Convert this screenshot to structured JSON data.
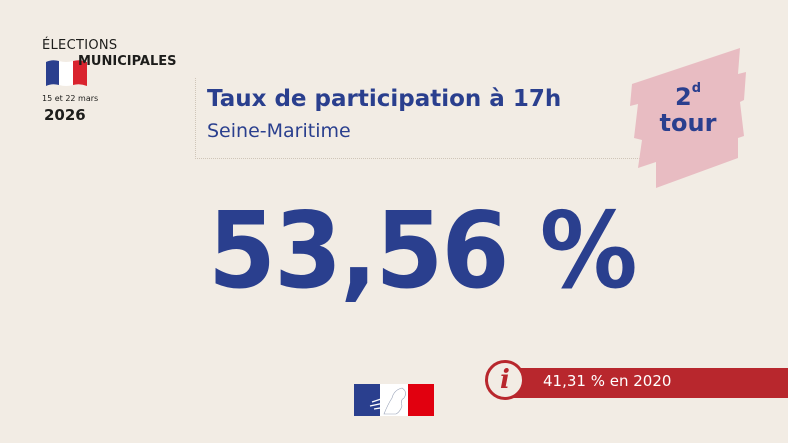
{
  "logo": {
    "line1": "ÉLECTIONS",
    "line2": "MUNICIPALES",
    "dates": "15 et 22 mars",
    "year": "2026"
  },
  "header": {
    "title": "Taux de participation à 17h",
    "subtitle": "Seine-Maritime"
  },
  "tour": {
    "number": "2",
    "superscript": "d",
    "word": "tour"
  },
  "main": {
    "rate": "53,56 %"
  },
  "info": {
    "icon": "info-icon",
    "glyph": "i",
    "text": "41,31 % en 2020"
  },
  "colors": {
    "blue": "#2a3f8e",
    "red": "#b8272d",
    "background": "#f2ece4",
    "badge_pink": "#e8bcc2"
  }
}
